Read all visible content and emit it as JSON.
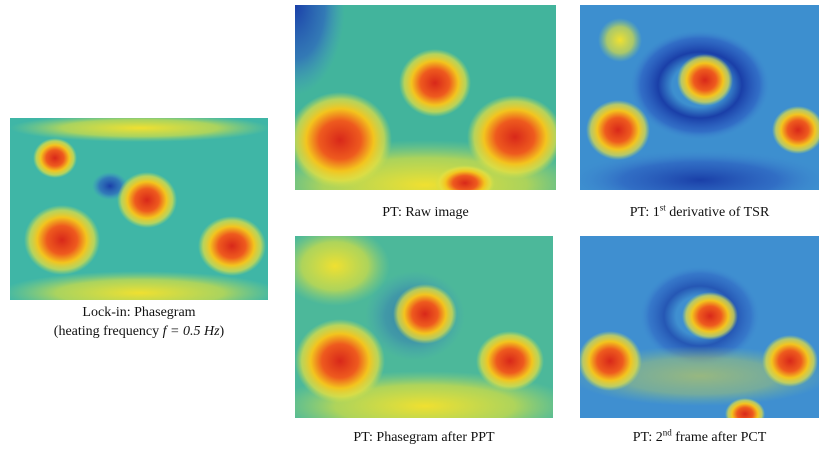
{
  "panels": [
    {
      "lines": [
        {
          "text": "Lock-in: Phasegram"
        },
        {
          "before": "(heating frequency ",
          "italic": "f = 0.5 Hz",
          "after": ")"
        }
      ]
    },
    {
      "lines": [
        {
          "text": "PT: Raw image"
        }
      ]
    },
    {
      "lines": [
        {
          "before": "PT: 1",
          "sup": "st",
          "after": " derivative of TSR"
        }
      ]
    },
    {
      "lines": [
        {
          "text": "PT: Phasegram after PPT"
        }
      ]
    },
    {
      "lines": [
        {
          "before": "PT: 2",
          "sup": "nd",
          "after": " frame after PCT"
        }
      ]
    }
  ]
}
